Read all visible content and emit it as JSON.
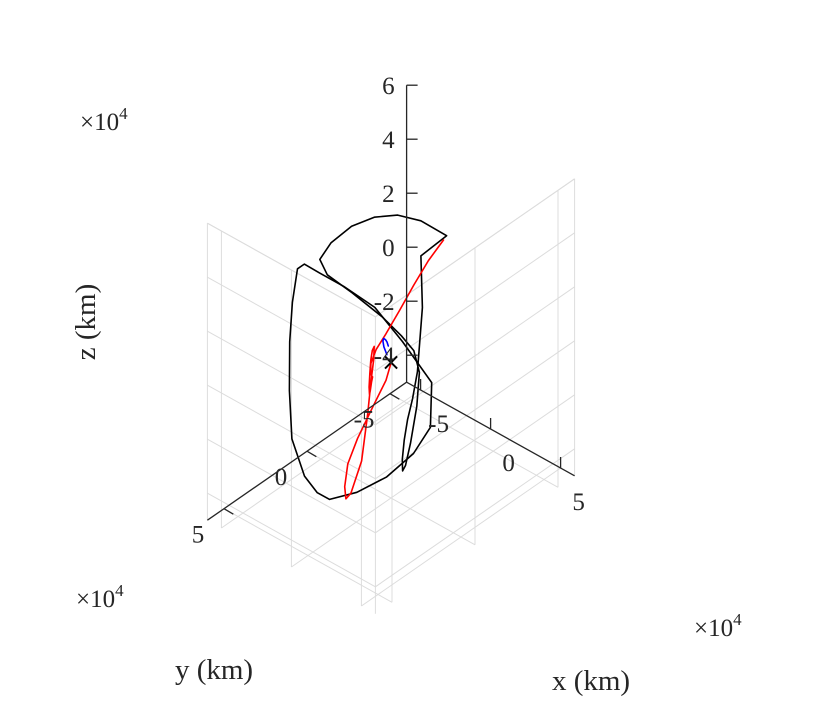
{
  "chart_data": {
    "type": "line",
    "projection": "3d",
    "title": "",
    "xlabel": "x (km)",
    "ylabel": "y (km)",
    "zlabel": "z (km)",
    "xlim": [
      -60000,
      60000
    ],
    "ylim": [
      -60000,
      60000
    ],
    "zlim": [
      -50000,
      60000
    ],
    "xticks": [
      -50000,
      0,
      50000
    ],
    "xtick_labels": [
      "-5",
      "0",
      "5"
    ],
    "yticks": [
      -50000,
      0,
      50000
    ],
    "ytick_labels": [
      "-5",
      "0",
      "5"
    ],
    "zticks": [
      -40000,
      -20000,
      0,
      20000,
      40000,
      60000
    ],
    "ztick_labels": [
      "-4",
      "-2",
      "0",
      "2",
      "4",
      "6"
    ],
    "exponent_base": "×10",
    "exponent_power": "4",
    "grid": true,
    "legend": "none",
    "colors": {
      "black_series": "#000000",
      "red_series": "#ff0000",
      "blue_series": "#0000ff",
      "axes": "#262626",
      "grid": "#dcdcdc"
    },
    "marker": {
      "symbol": "×",
      "point": [
        0,
        0,
        0
      ]
    },
    "series": [
      {
        "color": "#000000",
        "points": [
          [
            13300,
            -22300,
            41500
          ],
          [
            0,
            -18000,
            45000
          ],
          [
            -10300,
            -12700,
            46400
          ],
          [
            -19900,
            -6700,
            45400
          ],
          [
            -28500,
            -300,
            42300
          ],
          [
            -35700,
            6000,
            36800
          ],
          [
            -39700,
            9400,
            30900
          ],
          [
            -38600,
            5800,
            24000
          ],
          [
            -32000,
            -3600,
            15200
          ],
          [
            -24000,
            -14800,
            3900
          ],
          [
            -19000,
            -22300,
            -4900
          ],
          [
            -16000,
            -27200,
            -11600
          ],
          [
            -13400,
            -28400,
            -19400
          ],
          [
            -8700,
            -22900,
            -28300
          ],
          [
            1100,
            -10800,
            -34000
          ],
          [
            10600,
            200,
            -34800
          ],
          [
            18600,
            8700,
            -30900
          ],
          [
            23000,
            12600,
            -23700
          ],
          [
            24400,
            12600,
            -16200
          ],
          [
            22800,
            9200,
            -10400
          ],
          [
            20600,
            4400,
            -5500
          ],
          [
            16500,
            -2000,
            600
          ],
          [
            7000,
            -13000,
            17000
          ],
          [
            0,
            -18000,
            32000
          ],
          [
            13300,
            -22300,
            41500
          ]
        ]
      },
      {
        "color": "#000000",
        "points": [
          [
            -23300,
            23300,
            36500
          ],
          [
            -35000,
            22700,
            36200
          ],
          [
            -41300,
            21500,
            32100
          ],
          [
            -37200,
            28000,
            23700
          ],
          [
            -30000,
            35700,
            14400
          ],
          [
            -19200,
            45000,
            3400
          ],
          [
            -7000,
            53800,
            -7200
          ],
          [
            5700,
            56900,
            -16000
          ],
          [
            13300,
            55600,
            -20500
          ],
          [
            18600,
            52700,
            -22700
          ],
          [
            26600,
            43000,
            -21900
          ],
          [
            33300,
            30700,
            -19500
          ],
          [
            37800,
            18300,
            -14800
          ],
          [
            40000,
            10000,
            -8000
          ],
          [
            35000,
            5000,
            5000
          ],
          [
            20000,
            10000,
            18000
          ],
          [
            5000,
            14000,
            28000
          ],
          [
            -10000,
            20000,
            34000
          ],
          [
            -23300,
            23300,
            36500
          ]
        ]
      },
      {
        "color": "#ff0000",
        "points": [
          [
            6800,
            -25900,
            36500
          ],
          [
            1800,
            -21000,
            29500
          ],
          [
            -1900,
            -15400,
            21800
          ],
          [
            -5200,
            -9700,
            14000
          ],
          [
            -8000,
            -3700,
            6900
          ],
          [
            -9600,
            800,
            2600
          ],
          [
            -8700,
            4800,
            -600
          ],
          [
            -4500,
            8500,
            -1700
          ],
          [
            2200,
            13100,
            1100
          ],
          [
            6100,
            16200,
            3500
          ],
          [
            10800,
            20300,
            6300
          ],
          [
            13600,
            23200,
            6700
          ],
          [
            14600,
            24800,
            4600
          ],
          [
            12500,
            23500,
            1900
          ],
          [
            7700,
            19700,
            1700
          ],
          [
            2400,
            14800,
            2900
          ],
          [
            -3200,
            9500,
            4200
          ],
          [
            -9300,
            3400,
            3400
          ],
          [
            -14600,
            -2200,
            1000
          ],
          [
            -15000,
            -2200,
            -4000
          ],
          [
            -13700,
            500,
            -10400
          ],
          [
            -9700,
            5800,
            -18900
          ],
          [
            -1800,
            16200,
            -29900
          ],
          [
            5300,
            28600,
            -34500
          ],
          [
            13900,
            38900,
            -29700
          ],
          [
            18300,
            43300,
            -22100
          ],
          [
            17400,
            40700,
            -15000
          ],
          [
            13600,
            31600,
            -10500
          ],
          [
            8800,
            18500,
            -6000
          ],
          [
            4400,
            6700,
            -2300
          ],
          [
            0,
            0,
            0
          ]
        ]
      },
      {
        "color": "#0000ff",
        "points": [
          [
            -13500,
            -8900,
            -4600
          ],
          [
            -14300,
            -7800,
            -1500
          ],
          [
            -13600,
            -6600,
            1400
          ],
          [
            -11400,
            -5200,
            3600
          ],
          [
            -8200,
            -3700,
            4600
          ],
          [
            -6200,
            -2800,
            4800
          ],
          [
            -3800,
            -1600,
            4500
          ]
        ]
      }
    ]
  }
}
